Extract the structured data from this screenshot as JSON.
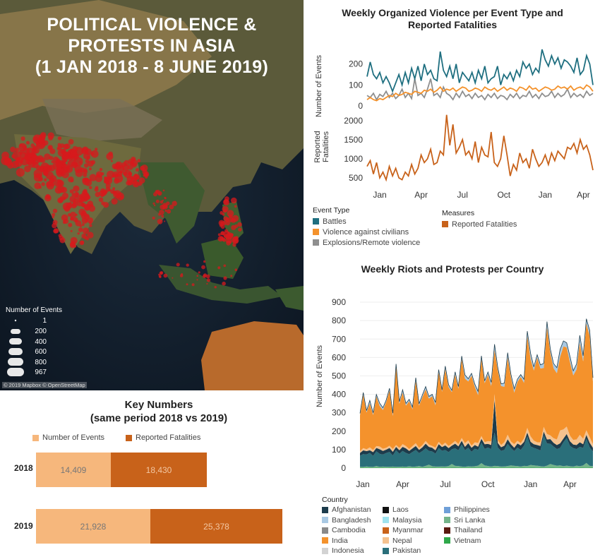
{
  "map": {
    "title_lines": [
      "POLITICAL VIOLENCE &",
      "PROTESTS IN ASIA",
      "(1 JAN 2018 - 8 JUNE 2019)"
    ],
    "legend_title": "Number of Events",
    "legend_sizes": [
      "1",
      "200",
      "400",
      "600",
      "800",
      "967"
    ],
    "credit": "© 2019 Mapbox © OpenStreetMap",
    "marker_color": "#d7191c"
  },
  "organized_chart": {
    "title_lines": [
      "Weekly Organized Violence per Event Type and",
      "Reported Fatalities"
    ],
    "x_tick_labels": [
      "Jan",
      "Apr",
      "Jul",
      "Oct",
      "Jan",
      "Apr"
    ],
    "top_panel": {
      "ylabel": "Number of Events",
      "yticks": [
        0,
        100,
        200
      ],
      "ylim": [
        0,
        270
      ]
    },
    "bottom_panel": {
      "ylabel_lines": [
        "Reported",
        "Fatalities"
      ],
      "yticks": [
        500,
        1000,
        1500,
        2000
      ],
      "ylim": [
        350,
        2200
      ]
    },
    "legend_event_type": {
      "title": "Event Type",
      "items": [
        {
          "label": "Battles",
          "color": "#1f6f80"
        },
        {
          "label": "Violence against civilians",
          "color": "#f4922c"
        },
        {
          "label": "Explosions/Remote violence",
          "color": "#8f8f8f"
        }
      ]
    },
    "legend_measures": {
      "title": "Measures",
      "items": [
        {
          "label": "Reported Fatalities",
          "color": "#c8621a"
        }
      ]
    }
  },
  "riots_chart": {
    "title": "Weekly Riots and Protests per Country",
    "ylabel": "Number of Events",
    "yticks": [
      0,
      100,
      200,
      300,
      400,
      500,
      600,
      700,
      800,
      900
    ],
    "x_tick_labels": [
      "Jan",
      "Apr",
      "Jul",
      "Oct",
      "Jan",
      "Apr"
    ],
    "legend_title": "Country",
    "countries": [
      {
        "label": "Afghanistan",
        "color": "#1d3c4c"
      },
      {
        "label": "Laos",
        "color": "#111111"
      },
      {
        "label": "Philippines",
        "color": "#6f9fd8"
      },
      {
        "label": "Bangladesh",
        "color": "#a9c9e3"
      },
      {
        "label": "Malaysia",
        "color": "#9fe3ef"
      },
      {
        "label": "Sri Lanka",
        "color": "#74b48a"
      },
      {
        "label": "Cambodia",
        "color": "#8a8a8a"
      },
      {
        "label": "Myanmar",
        "color": "#c8621a"
      },
      {
        "label": "Thailand",
        "color": "#5a1a10"
      },
      {
        "label": "India",
        "color": "#f4922c"
      },
      {
        "label": "Nepal",
        "color": "#f5c28f"
      },
      {
        "label": "Vietnam",
        "color": "#2fa84a"
      },
      {
        "label": "Indonesia",
        "color": "#d3d3d3"
      },
      {
        "label": "Pakistan",
        "color": "#2a6f7a"
      }
    ]
  },
  "key_numbers": {
    "title_lines": [
      "Key Numbers",
      "(same period 2018 vs 2019)"
    ],
    "legend": [
      {
        "label": "Number of Events",
        "color": "#f6b77c"
      },
      {
        "label": "Reported Fatalities",
        "color": "#c8621a"
      }
    ],
    "rows": [
      {
        "year": "2018",
        "events": 14409,
        "events_label": "14,409",
        "fatalities": 18430,
        "fatalities_label": "18,430"
      },
      {
        "year": "2019",
        "events": 21928,
        "events_label": "21,928",
        "fatalities": 25378,
        "fatalities_label": "25,378"
      }
    ]
  },
  "chart_data": [
    {
      "type": "line",
      "title": "Weekly Organized Violence per Event Type and Reported Fatalities",
      "ylabel": "Number of Events",
      "x": [
        1,
        2,
        3,
        4,
        5,
        6,
        7,
        8,
        9,
        10,
        11,
        12,
        13,
        14,
        15,
        16,
        17,
        18,
        19,
        20,
        21,
        22,
        23,
        24,
        25,
        26,
        27,
        28,
        29,
        30,
        31,
        32,
        33,
        34,
        35,
        36,
        37,
        38,
        39,
        40,
        41,
        42,
        43,
        44,
        45,
        46,
        47,
        48,
        49,
        50,
        51,
        52,
        53,
        54,
        55,
        56,
        57,
        58,
        59,
        60,
        61,
        62,
        63,
        64,
        65,
        66,
        67,
        68,
        69,
        70,
        71,
        72
      ],
      "series": [
        {
          "name": "Battles",
          "values": [
            140,
            210,
            150,
            130,
            160,
            110,
            140,
            110,
            70,
            110,
            150,
            100,
            160,
            110,
            180,
            130,
            190,
            120,
            200,
            150,
            170,
            130,
            120,
            260,
            170,
            140,
            190,
            130,
            200,
            110,
            160,
            140,
            120,
            160,
            110,
            170,
            130,
            190,
            110,
            130,
            140,
            190,
            100,
            150,
            130,
            160,
            120,
            170,
            140,
            210,
            180,
            200,
            150,
            180,
            160,
            270,
            220,
            190,
            240,
            200,
            230,
            180,
            220,
            210,
            190,
            160,
            230,
            150,
            170,
            240,
            200,
            100
          ]
        },
        {
          "name": "Violence against civilians",
          "values": [
            30,
            40,
            30,
            25,
            35,
            30,
            40,
            50,
            45,
            60,
            50,
            55,
            65,
            60,
            55,
            70,
            65,
            60,
            75,
            70,
            80,
            65,
            75,
            90,
            70,
            80,
            75,
            85,
            70,
            80,
            90,
            85,
            70,
            75,
            85,
            80,
            70,
            90,
            80,
            75,
            85,
            70,
            80,
            90,
            75,
            85,
            80,
            70,
            90,
            85,
            75,
            95,
            80,
            85,
            70,
            80,
            90,
            85,
            75,
            80,
            95,
            85,
            90,
            80,
            95,
            75,
            85,
            90,
            80,
            100,
            90,
            70
          ]
        },
        {
          "name": "Explosions/Remote violence",
          "values": [
            50,
            40,
            60,
            30,
            55,
            45,
            70,
            40,
            60,
            35,
            50,
            80,
            40,
            60,
            35,
            130,
            50,
            60,
            40,
            80,
            130,
            50,
            60,
            40,
            90,
            60,
            50,
            30,
            60,
            40,
            70,
            45,
            55,
            35,
            60,
            40,
            50,
            30,
            55,
            40,
            60,
            35,
            50,
            45,
            30,
            55,
            40,
            60,
            35,
            50,
            45,
            70,
            40,
            55,
            35,
            60,
            45,
            50,
            70,
            40,
            60,
            45,
            55,
            80,
            40,
            60,
            45,
            55,
            40,
            70,
            50,
            60
          ]
        },
        {
          "name": "Reported Fatalities",
          "values": [
            800,
            950,
            600,
            900,
            500,
            650,
            450,
            800,
            550,
            750,
            500,
            450,
            650,
            550,
            850,
            600,
            750,
            1100,
            900,
            1000,
            1250,
            850,
            900,
            1200,
            1100,
            2150,
            1350,
            1900,
            1150,
            1300,
            1500,
            1100,
            1200,
            1000,
            1450,
            900,
            1300,
            1100,
            1050,
            1700,
            900,
            800,
            1000,
            1600,
            1100,
            550,
            850,
            700,
            1150,
            900,
            1000,
            750,
            1250,
            1000,
            800,
            900,
            1100,
            850,
            1150,
            950,
            1200,
            1100,
            1000,
            1300,
            1250,
            1400,
            1150,
            1500,
            1250,
            1350,
            1100,
            700
          ]
        }
      ]
    },
    {
      "type": "area",
      "title": "Weekly Riots and Protests per Country",
      "ylabel": "Number of Events",
      "ylim": [
        0,
        950
      ],
      "x": [
        1,
        2,
        3,
        4,
        5,
        6,
        7,
        8,
        9,
        10,
        11,
        12,
        13,
        14,
        15,
        16,
        17,
        18,
        19,
        20,
        21,
        22,
        23,
        24,
        25,
        26,
        27,
        28,
        29,
        30,
        31,
        32,
        33,
        34,
        35,
        36,
        37,
        38,
        39,
        40,
        41,
        42,
        43,
        44,
        45,
        46,
        47,
        48,
        49,
        50,
        51,
        52,
        53,
        54,
        55,
        56,
        57,
        58,
        59,
        60,
        61,
        62,
        63,
        64,
        65,
        66,
        67,
        68,
        69,
        70,
        71,
        72
      ],
      "series": [
        {
          "name": "Vietnam",
          "values": [
            2,
            2,
            3,
            2,
            2,
            3,
            2,
            2,
            3,
            2,
            2,
            2,
            3,
            2,
            2,
            3,
            2,
            2,
            3,
            2,
            2,
            3,
            2,
            2,
            3,
            2,
            2,
            3,
            2,
            2,
            3,
            2,
            2,
            3,
            2,
            2,
            3,
            2,
            2,
            3,
            2,
            2,
            3,
            2,
            2,
            3,
            2,
            2,
            3,
            2,
            2,
            3,
            2,
            2,
            3,
            2,
            2,
            3,
            2,
            2,
            3,
            2,
            2,
            3,
            2,
            2,
            3,
            2,
            2,
            3,
            2,
            2
          ]
        },
        {
          "name": "Sri Lanka",
          "values": [
            5,
            4,
            6,
            5,
            4,
            8,
            5,
            6,
            4,
            5,
            6,
            5,
            4,
            6,
            5,
            7,
            5,
            6,
            8,
            5,
            10,
            15,
            8,
            6,
            5,
            7,
            6,
            8,
            20,
            10,
            8,
            6,
            5,
            7,
            6,
            8,
            10,
            25,
            12,
            8,
            6,
            10,
            8,
            6,
            7,
            8,
            12,
            10,
            8,
            6,
            10,
            8,
            15,
            12,
            10,
            8,
            6,
            10,
            20,
            15,
            10,
            12,
            8,
            10,
            8,
            6,
            10,
            8,
            12,
            25,
            10,
            8
          ]
        },
        {
          "name": "Pakistan",
          "values": [
            60,
            70,
            65,
            75,
            60,
            80,
            70,
            65,
            75,
            80,
            60,
            90,
            70,
            85,
            75,
            65,
            80,
            90,
            70,
            85,
            95,
            75,
            80,
            70,
            100,
            85,
            90,
            75,
            80,
            95,
            85,
            120,
            90,
            100,
            80,
            95,
            85,
            110,
            90,
            100,
            95,
            180,
            100,
            85,
            90,
            120,
            95,
            80,
            100,
            90,
            110,
            160,
            100,
            95,
            90,
            85,
            170,
            120,
            110,
            100,
            90,
            95,
            130,
            150,
            110,
            100,
            90,
            105,
            95,
            130,
            100,
            80
          ]
        },
        {
          "name": "Afghanistan",
          "values": [
            15,
            20,
            18,
            15,
            20,
            18,
            25,
            20,
            18,
            22,
            20,
            18,
            20,
            22,
            25,
            18,
            20,
            22,
            18,
            20,
            25,
            22,
            20,
            18,
            22,
            20,
            25,
            22,
            20,
            25,
            22,
            20,
            18,
            25,
            22,
            20,
            18,
            22,
            25,
            20,
            22,
            180,
            25,
            20,
            22,
            25,
            20,
            18,
            22,
            25,
            20,
            22,
            25,
            20,
            22,
            25,
            20,
            22,
            25,
            20,
            22,
            25,
            20,
            22,
            25,
            20,
            22,
            25,
            20,
            22,
            25,
            20
          ]
        },
        {
          "name": "Nepal",
          "values": [
            10,
            12,
            10,
            15,
            12,
            10,
            15,
            12,
            10,
            12,
            15,
            10,
            12,
            15,
            12,
            10,
            12,
            15,
            10,
            12,
            15,
            12,
            10,
            15,
            12,
            10,
            15,
            12,
            10,
            15,
            12,
            15,
            20,
            15,
            12,
            15,
            20,
            15,
            12,
            15,
            20,
            30,
            15,
            12,
            20,
            25,
            15,
            20,
            15,
            12,
            20,
            25,
            30,
            20,
            15,
            20,
            25,
            30,
            20,
            25,
            30,
            70,
            50,
            40,
            30,
            25,
            30,
            40,
            30,
            25,
            30,
            20
          ]
        },
        {
          "name": "India",
          "values": [
            195,
            290,
            200,
            240,
            190,
            270,
            220,
            210,
            250,
            300,
            180,
            430,
            240,
            280,
            220,
            260,
            200,
            340,
            230,
            260,
            280,
            250,
            270,
            230,
            380,
            290,
            400,
            320,
            280,
            360,
            300,
            430,
            350,
            320,
            380,
            300,
            260,
            420,
            320,
            360,
            300,
            240,
            380,
            320,
            300,
            420,
            350,
            280,
            320,
            360,
            300,
            500,
            420,
            380,
            460,
            400,
            320,
            580,
            450,
            380,
            360,
            400,
            450,
            430,
            400,
            350,
            380,
            500,
            420,
            580,
            550,
            340
          ]
        },
        {
          "name": "Bangladesh",
          "values": [
            10,
            12,
            10,
            15,
            12,
            10,
            15,
            12,
            10,
            12,
            15,
            10,
            12,
            15,
            12,
            10,
            12,
            15,
            10,
            12,
            15,
            12,
            10,
            15,
            12,
            10,
            15,
            12,
            10,
            15,
            12,
            15,
            20,
            15,
            12,
            15,
            20,
            15,
            12,
            15,
            20,
            30,
            15,
            12,
            20,
            25,
            15,
            20,
            15,
            12,
            20,
            25,
            30,
            20,
            15,
            20,
            25,
            30,
            20,
            25,
            30,
            40,
            30,
            25,
            30,
            25,
            30,
            40,
            30,
            25,
            30,
            20
          ]
        }
      ]
    }
  ]
}
